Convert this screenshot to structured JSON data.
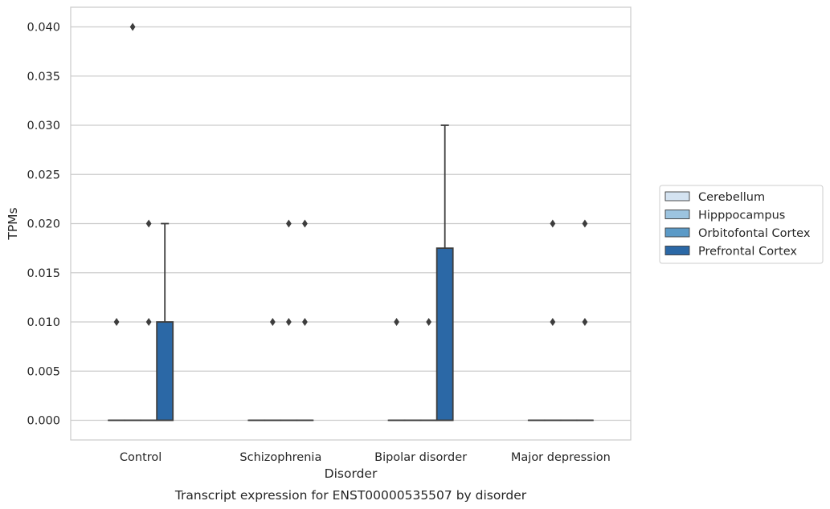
{
  "chart_data": {
    "type": "box",
    "title": "Transcript expression for ENST00000535507 by disorder",
    "xlabel": "Disorder",
    "ylabel": "TPMs",
    "ylim": [
      -0.002,
      0.042
    ],
    "yticks": [
      "0.000",
      "0.005",
      "0.010",
      "0.015",
      "0.020",
      "0.025",
      "0.030",
      "0.035",
      "0.040"
    ],
    "grid": true,
    "legend_position": "right",
    "categories": [
      "Control",
      "Schizophrenia",
      "Bipolar disorder",
      "Major depression"
    ],
    "series": [
      {
        "name": "Cerebellum",
        "color": "#d4e3f1",
        "boxes": [
          {
            "min": 0,
            "q1": 0,
            "median": 0,
            "q3": 0,
            "max": 0,
            "outliers": [
              0.01
            ]
          },
          {
            "min": 0,
            "q1": 0,
            "median": 0,
            "q3": 0,
            "max": 0,
            "outliers": []
          },
          {
            "min": 0,
            "q1": 0,
            "median": 0,
            "q3": 0,
            "max": 0,
            "outliers": [
              0.01
            ]
          },
          {
            "min": 0,
            "q1": 0,
            "median": 0,
            "q3": 0,
            "max": 0,
            "outliers": []
          }
        ]
      },
      {
        "name": "Hipppocampus",
        "color": "#9cc4e0",
        "boxes": [
          {
            "min": 0,
            "q1": 0,
            "median": 0,
            "q3": 0,
            "max": 0,
            "outliers": [
              0.04
            ]
          },
          {
            "min": 0,
            "q1": 0,
            "median": 0,
            "q3": 0,
            "max": 0,
            "outliers": [
              0.01
            ]
          },
          {
            "min": 0,
            "q1": 0,
            "median": 0,
            "q3": 0,
            "max": 0,
            "outliers": []
          },
          {
            "min": 0,
            "q1": 0,
            "median": 0,
            "q3": 0,
            "max": 0,
            "outliers": [
              0.01,
              0.02
            ]
          }
        ]
      },
      {
        "name": "Orbitofontal Cortex",
        "color": "#5b9ac7",
        "boxes": [
          {
            "min": 0,
            "q1": 0,
            "median": 0,
            "q3": 0,
            "max": 0,
            "outliers": [
              0.01,
              0.02
            ]
          },
          {
            "min": 0,
            "q1": 0,
            "median": 0,
            "q3": 0,
            "max": 0,
            "outliers": [
              0.01,
              0.02
            ]
          },
          {
            "min": 0,
            "q1": 0,
            "median": 0,
            "q3": 0,
            "max": 0,
            "outliers": [
              0.01
            ]
          },
          {
            "min": 0,
            "q1": 0,
            "median": 0,
            "q3": 0,
            "max": 0,
            "outliers": []
          }
        ]
      },
      {
        "name": "Prefrontal Cortex",
        "color": "#2b68a6",
        "boxes": [
          {
            "min": 0,
            "q1": 0,
            "median": 0,
            "q3": 0.01,
            "max": 0.02,
            "outliers": []
          },
          {
            "min": 0,
            "q1": 0,
            "median": 0,
            "q3": 0,
            "max": 0,
            "outliers": [
              0.01,
              0.02
            ]
          },
          {
            "min": 0,
            "q1": 0,
            "median": 0,
            "q3": 0.0175,
            "max": 0.03,
            "outliers": []
          },
          {
            "min": 0,
            "q1": 0,
            "median": 0,
            "q3": 0,
            "max": 0,
            "outliers": [
              0.01,
              0.02
            ]
          }
        ]
      }
    ]
  }
}
